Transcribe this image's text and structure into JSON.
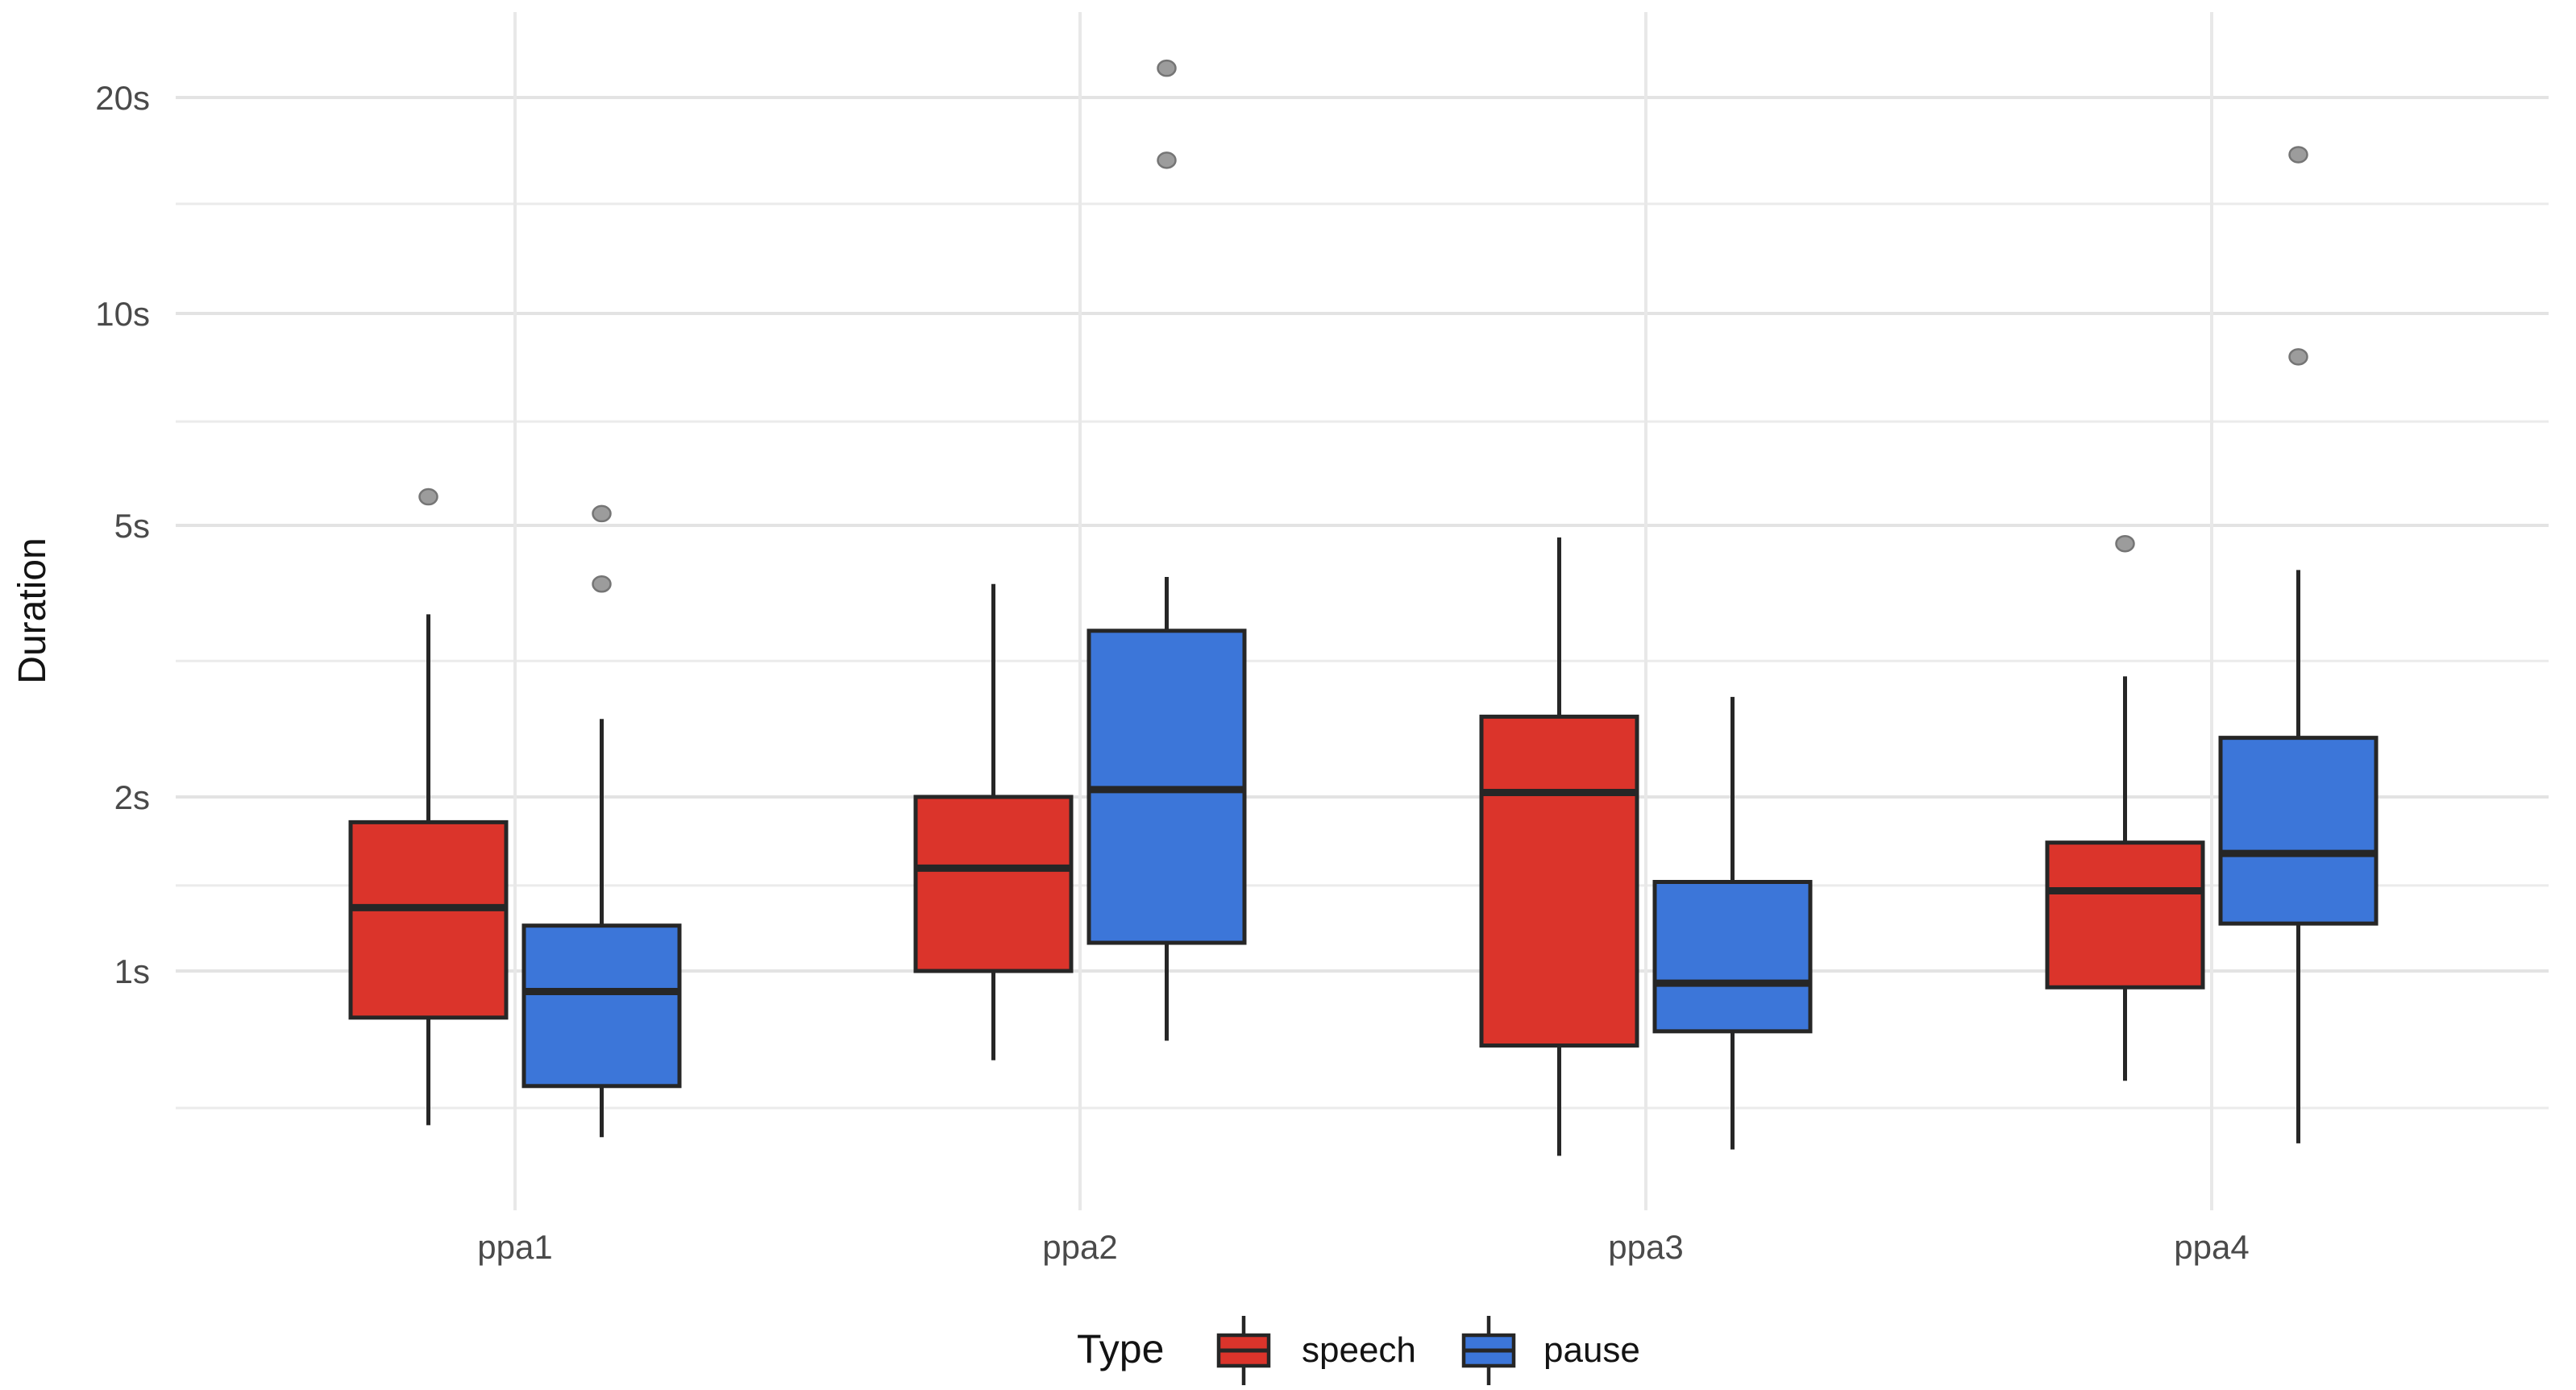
{
  "chart_data": {
    "type": "boxplot",
    "title": "",
    "xlabel": "",
    "ylabel": "Duration",
    "x_categories": [
      "ppa1",
      "ppa2",
      "ppa3",
      "ppa4"
    ],
    "y_scale": "log",
    "y_unit": "s",
    "y_tick_labels": [
      "20s",
      "10s",
      "5s",
      "2s",
      "1s"
    ],
    "y_major_breaks": [
      20,
      10,
      5,
      2,
      1
    ],
    "y_minor_breaks": [
      14.14,
      7.07,
      3.16,
      1.41,
      0.71
    ],
    "ylim": [
      0.55,
      24
    ],
    "grid": "on",
    "legend": {
      "title": "Type",
      "position": "bottom",
      "entries": [
        "speech",
        "pause"
      ]
    },
    "series": [
      {
        "name": "speech",
        "color": "#db342b",
        "boxes": [
          {
            "category": "ppa1",
            "low": 0.68,
            "q1": 0.89,
            "median": 1.29,
            "q3": 1.81,
            "high": 3.7,
            "outliers": [
              5.5
            ]
          },
          {
            "category": "ppa2",
            "low": 0.8,
            "q1": 1.0,
            "median": 1.51,
            "q3": 2.0,
            "high": 4.1,
            "outliers": []
          },
          {
            "category": "ppa3",
            "low": 0.63,
            "q1": 0.83,
            "median": 2.03,
            "q3": 2.62,
            "high": 4.8,
            "outliers": []
          },
          {
            "category": "ppa4",
            "low": 0.76,
            "q1": 0.96,
            "median": 1.38,
            "q3": 1.67,
            "high": 3.0,
            "outliers": [
              4.7
            ]
          }
        ]
      },
      {
        "name": "pause",
        "color": "#3c76d9",
        "boxes": [
          {
            "category": "ppa1",
            "low": 0.66,
            "q1": 0.75,
            "median": 0.95,
            "q3": 1.2,
            "high": 2.6,
            "outliers": [
              5.2,
              4.1
            ]
          },
          {
            "category": "ppa2",
            "low": 0.84,
            "q1": 1.12,
            "median": 2.05,
            "q3": 3.5,
            "high": 4.2,
            "outliers": [
              22,
              16.3
            ]
          },
          {
            "category": "ppa3",
            "low": 0.64,
            "q1": 0.86,
            "median": 0.97,
            "q3": 1.43,
            "high": 2.8,
            "outliers": []
          },
          {
            "category": "ppa4",
            "low": 0.65,
            "q1": 1.21,
            "median": 1.6,
            "q3": 2.44,
            "high": 4.3,
            "outliers": [
              16.6,
              8.7
            ]
          }
        ]
      }
    ]
  },
  "colors": {
    "speech_fill": "#db342b",
    "pause_fill": "#3c76d9",
    "box_border": "#262626",
    "outlier_fill": "#9c9c9c",
    "outlier_stroke": "#757575",
    "grid_major": "#e3e3e3",
    "grid_minor": "#ebebeb",
    "grid_vertical": "#e8e8e8",
    "axis_text": "#4a4a4a",
    "title_text": "#131313",
    "background": "#ffffff"
  }
}
